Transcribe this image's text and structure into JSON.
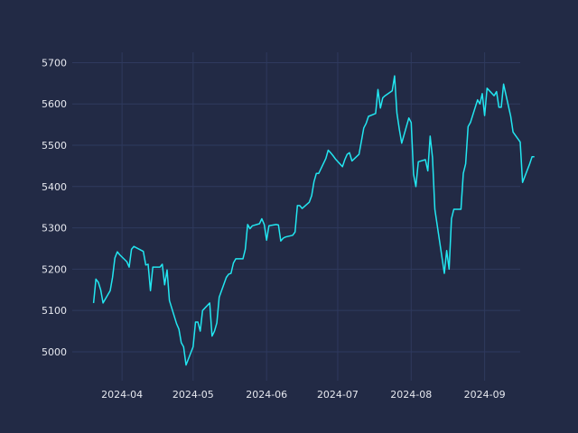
{
  "chart_data": {
    "type": "line",
    "title": "",
    "xlabel": "",
    "ylabel": "",
    "grid": true,
    "colors": {
      "background": "#222a45",
      "grid": "#2f3a5e",
      "line": "#22e6f0",
      "text": "#e6e8ef"
    },
    "xlim": [
      "2024-03-11",
      "2024-09-16"
    ],
    "ylim": [
      4930,
      5725
    ],
    "x_ticks": [
      "2024-04-01",
      "2024-05-01",
      "2024-06-01",
      "2024-07-01",
      "2024-08-01",
      "2024-09-01"
    ],
    "x_tick_labels": [
      "2024-04",
      "2024-05",
      "2024-06",
      "2024-07",
      "2024-08",
      "2024-09"
    ],
    "y_ticks": [
      5000,
      5100,
      5200,
      5300,
      5400,
      5500,
      5600,
      5700
    ],
    "y_tick_labels": [
      "5000",
      "5100",
      "5200",
      "5300",
      "5400",
      "5500",
      "5600",
      "5700"
    ],
    "series": [
      {
        "color": "#22e6f0",
        "points": [
          [
            "2024-03-20",
            5118
          ],
          [
            "2024-03-21",
            5176
          ],
          [
            "2024-03-22",
            5168
          ],
          [
            "2024-03-23",
            5150
          ],
          [
            "2024-03-24",
            5118
          ],
          [
            "2024-03-27",
            5148
          ],
          [
            "2024-03-28",
            5180
          ],
          [
            "2024-03-29",
            5227
          ],
          [
            "2024-03-30",
            5242
          ],
          [
            "2024-03-31",
            5235
          ],
          [
            "2024-04-03",
            5218
          ],
          [
            "2024-04-04",
            5205
          ],
          [
            "2024-04-05",
            5248
          ],
          [
            "2024-04-06",
            5255
          ],
          [
            "2024-04-09",
            5246
          ],
          [
            "2024-04-10",
            5243
          ],
          [
            "2024-04-11",
            5210
          ],
          [
            "2024-04-12",
            5212
          ],
          [
            "2024-04-13",
            5148
          ],
          [
            "2024-04-14",
            5205
          ],
          [
            "2024-04-17",
            5205
          ],
          [
            "2024-04-18",
            5212
          ],
          [
            "2024-04-19",
            5162
          ],
          [
            "2024-04-20",
            5198
          ],
          [
            "2024-04-21",
            5124
          ],
          [
            "2024-04-24",
            5068
          ],
          [
            "2024-04-25",
            5055
          ],
          [
            "2024-04-26",
            5022
          ],
          [
            "2024-04-27",
            5012
          ],
          [
            "2024-04-28",
            4968
          ],
          [
            "2024-05-01",
            5012
          ],
          [
            "2024-05-02",
            5072
          ],
          [
            "2024-05-03",
            5072
          ],
          [
            "2024-05-04",
            5050
          ],
          [
            "2024-05-05",
            5100
          ],
          [
            "2024-05-08",
            5118
          ],
          [
            "2024-05-09",
            5038
          ],
          [
            "2024-05-10",
            5050
          ],
          [
            "2024-05-11",
            5070
          ],
          [
            "2024-05-12",
            5132
          ],
          [
            "2024-05-15",
            5180
          ],
          [
            "2024-05-16",
            5188
          ],
          [
            "2024-05-17",
            5190
          ],
          [
            "2024-05-18",
            5215
          ],
          [
            "2024-05-19",
            5225
          ],
          [
            "2024-05-22",
            5225
          ],
          [
            "2024-05-23",
            5248
          ],
          [
            "2024-05-24",
            5308
          ],
          [
            "2024-05-25",
            5298
          ],
          [
            "2024-05-26",
            5305
          ],
          [
            "2024-05-29",
            5310
          ],
          [
            "2024-05-30",
            5322
          ],
          [
            "2024-05-31",
            5308
          ],
          [
            "2024-06-01",
            5270
          ],
          [
            "2024-06-02",
            5305
          ],
          [
            "2024-06-05",
            5308
          ],
          [
            "2024-06-06",
            5307
          ],
          [
            "2024-06-07",
            5268
          ],
          [
            "2024-06-08",
            5275
          ],
          [
            "2024-06-09",
            5278
          ],
          [
            "2024-06-12",
            5282
          ],
          [
            "2024-06-13",
            5290
          ],
          [
            "2024-06-14",
            5354
          ],
          [
            "2024-06-15",
            5354
          ],
          [
            "2024-06-16",
            5347
          ],
          [
            "2024-06-19",
            5362
          ],
          [
            "2024-06-20",
            5378
          ],
          [
            "2024-06-21",
            5412
          ],
          [
            "2024-06-22",
            5432
          ],
          [
            "2024-06-23",
            5432
          ],
          [
            "2024-06-26",
            5468
          ],
          [
            "2024-06-27",
            5488
          ],
          [
            "2024-06-28",
            5482
          ],
          [
            "2024-06-29",
            5475
          ],
          [
            "2024-06-30",
            5467
          ],
          [
            "2024-07-03",
            5448
          ],
          [
            "2024-07-04",
            5465
          ],
          [
            "2024-07-05",
            5478
          ],
          [
            "2024-07-06",
            5482
          ],
          [
            "2024-07-07",
            5462
          ],
          [
            "2024-07-10",
            5478
          ],
          [
            "2024-07-11",
            5510
          ],
          [
            "2024-07-12",
            5542
          ],
          [
            "2024-07-13",
            5553
          ],
          [
            "2024-07-14",
            5570
          ],
          [
            "2024-07-17",
            5577
          ],
          [
            "2024-07-18",
            5635
          ],
          [
            "2024-07-19",
            5590
          ],
          [
            "2024-07-20",
            5615
          ],
          [
            "2024-07-21",
            5620
          ],
          [
            "2024-07-24",
            5632
          ],
          [
            "2024-07-25",
            5668
          ],
          [
            "2024-07-26",
            5578
          ],
          [
            "2024-07-27",
            5538
          ],
          [
            "2024-07-28",
            5505
          ],
          [
            "2024-07-31",
            5566
          ],
          [
            "2024-08-01",
            5555
          ],
          [
            "2024-08-02",
            5430
          ],
          [
            "2024-08-03",
            5400
          ],
          [
            "2024-08-04",
            5460
          ],
          [
            "2024-08-07",
            5465
          ],
          [
            "2024-08-08",
            5438
          ],
          [
            "2024-08-09",
            5522
          ],
          [
            "2024-08-10",
            5470
          ],
          [
            "2024-08-11",
            5345
          ],
          [
            "2024-08-15",
            5190
          ],
          [
            "2024-08-16",
            5245
          ],
          [
            "2024-08-17",
            5200
          ],
          [
            "2024-08-18",
            5322
          ],
          [
            "2024-08-19",
            5345
          ],
          [
            "2024-08-22",
            5345
          ],
          [
            "2024-08-23",
            5432
          ],
          [
            "2024-08-24",
            5455
          ],
          [
            "2024-08-25",
            5545
          ],
          [
            "2024-08-26",
            5555
          ],
          [
            "2024-08-29",
            5610
          ],
          [
            "2024-08-30",
            5600
          ],
          [
            "2024-08-31",
            5625
          ],
          [
            "2024-09-01",
            5572
          ],
          [
            "2024-09-02",
            5638
          ],
          [
            "2024-09-05",
            5620
          ],
          [
            "2024-09-06",
            5630
          ],
          [
            "2024-09-07",
            5592
          ],
          [
            "2024-09-08",
            5592
          ],
          [
            "2024-09-09",
            5648
          ],
          [
            "2024-09-12",
            5570
          ],
          [
            "2024-09-13",
            5532
          ],
          [
            "2024-09-16",
            5508
          ],
          [
            "2024-09-17",
            5410
          ],
          [
            "2024-09-20",
            5455
          ],
          [
            "2024-09-21",
            5472
          ],
          [
            "2024-09-22",
            5472
          ]
        ]
      }
    ]
  }
}
